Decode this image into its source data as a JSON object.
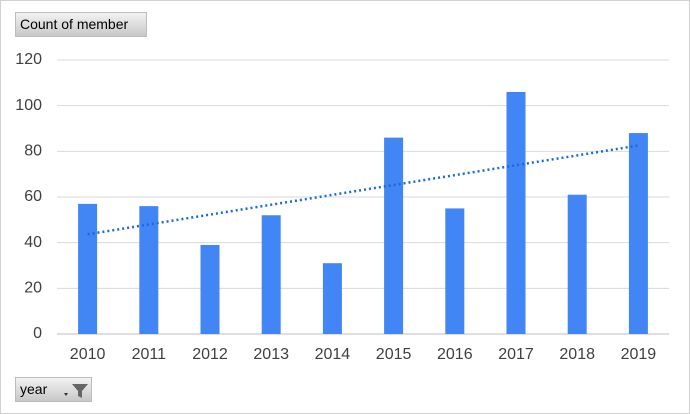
{
  "field_buttons": {
    "value_field": "Count of member",
    "axis_field": "year"
  },
  "chart_data": {
    "type": "bar",
    "categories": [
      "2010",
      "2011",
      "2012",
      "2013",
      "2014",
      "2015",
      "2016",
      "2017",
      "2018",
      "2019"
    ],
    "values": [
      57,
      56,
      39,
      52,
      31,
      86,
      55,
      106,
      61,
      88
    ],
    "color": "#4285f4",
    "ylim": [
      0,
      120
    ],
    "yticks": [
      0,
      20,
      40,
      60,
      80,
      100,
      120
    ],
    "grid": true,
    "trendline": {
      "kind": "linear",
      "color": "#1a6ad8"
    }
  }
}
